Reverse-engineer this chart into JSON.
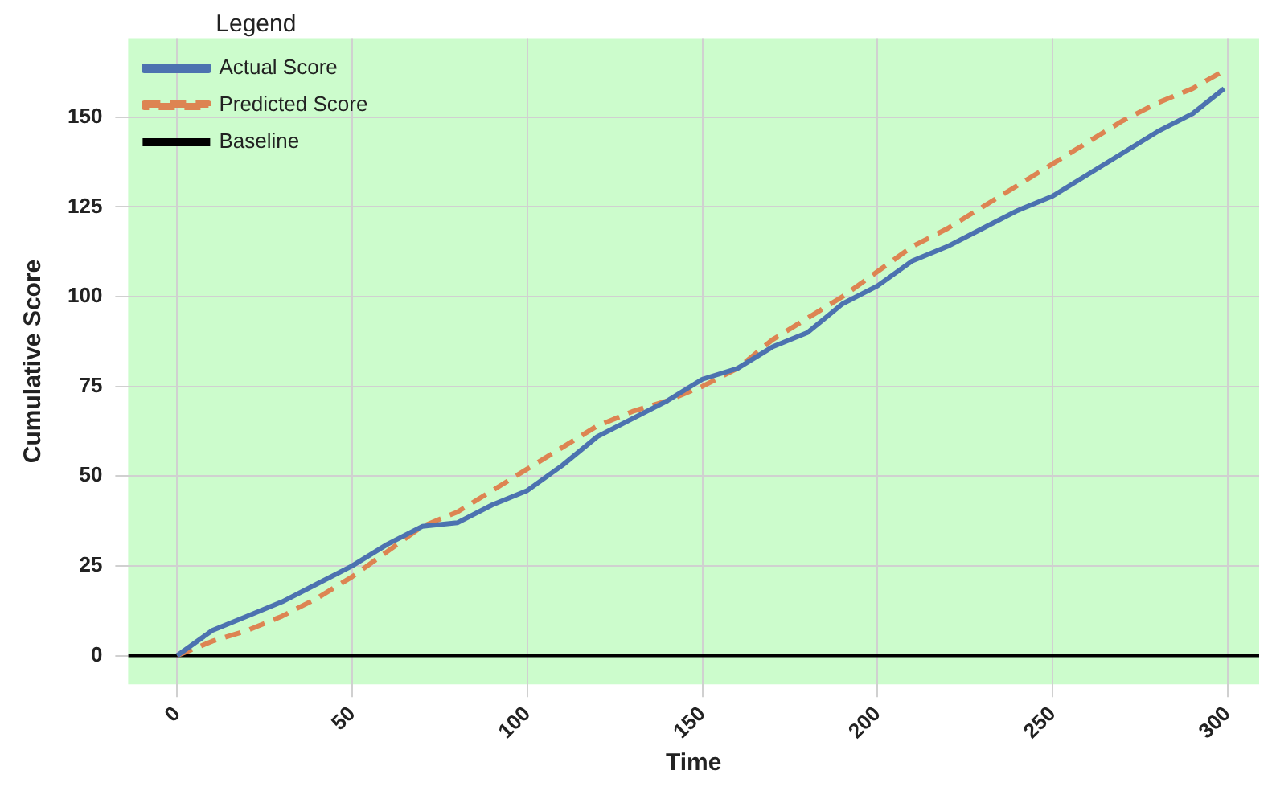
{
  "chart_data": {
    "type": "line",
    "xlabel": "Time",
    "ylabel": "Cumulative Score",
    "legend_title": "Legend",
    "x": [
      0,
      10,
      20,
      30,
      40,
      50,
      60,
      70,
      80,
      90,
      100,
      110,
      120,
      130,
      140,
      150,
      160,
      170,
      180,
      190,
      200,
      210,
      220,
      230,
      240,
      250,
      260,
      270,
      280,
      290,
      299
    ],
    "series": [
      {
        "name": "Actual Score",
        "color": "#4c72b0",
        "line_style": "solid",
        "values": [
          0,
          7,
          11,
          15,
          20,
          25,
          31,
          36,
          37,
          42,
          46,
          53,
          61,
          66,
          71,
          77,
          80,
          86,
          90,
          98,
          103,
          110,
          114,
          119,
          124,
          128,
          134,
          140,
          146,
          151,
          158
        ]
      },
      {
        "name": "Predicted Score",
        "color": "#dd8452",
        "line_style": "dashed",
        "values": [
          0,
          4,
          7,
          11,
          16,
          22,
          29,
          36,
          40,
          46,
          52,
          58,
          64,
          68,
          71,
          75,
          80,
          88,
          94,
          100,
          107,
          114,
          119,
          125,
          131,
          137,
          143,
          149,
          154,
          158,
          163
        ]
      }
    ],
    "ref_lines": [
      {
        "axis": "y",
        "value": 0,
        "label": "Baseline",
        "color": "#000000"
      }
    ],
    "xlim": [
      -14,
      309
    ],
    "ylim": [
      -8,
      172
    ],
    "xticks": [
      0,
      50,
      100,
      150,
      200,
      250,
      300
    ],
    "yticks": [
      0,
      25,
      50,
      75,
      100,
      125,
      150
    ],
    "grid": true,
    "legend": "top left",
    "marker": "none"
  }
}
